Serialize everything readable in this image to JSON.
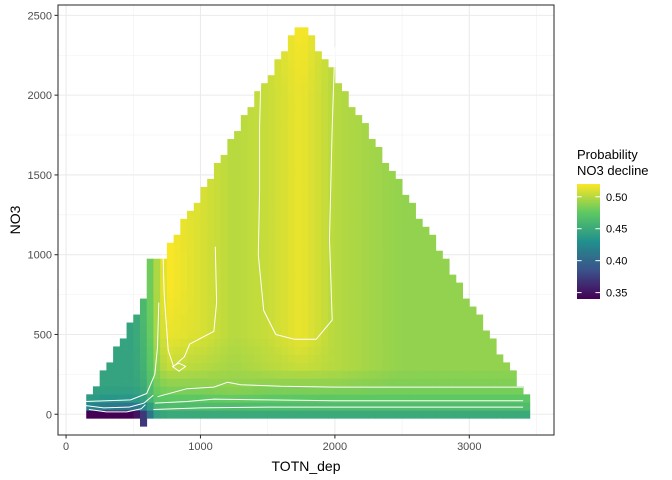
{
  "chart_data": {
    "type": "heatmap",
    "title": "",
    "xlabel": "TOTN_dep",
    "ylabel": "NO3",
    "xlim": [
      -60,
      3630
    ],
    "ylim": [
      -130,
      2565
    ],
    "x_ticks": [
      0,
      1000,
      2000,
      3000
    ],
    "y_ticks": [
      0,
      500,
      1000,
      1500,
      2000,
      2500
    ],
    "grid": true,
    "legend": {
      "position": "right",
      "title_lines": [
        "Probability",
        "NO3 decline"
      ],
      "ticks": [
        0.35,
        0.4,
        0.45,
        0.5
      ],
      "range": [
        0.34,
        0.52
      ],
      "colors": [
        "#440154",
        "#3b528b",
        "#21908d",
        "#5dc863",
        "#fde725"
      ]
    },
    "cell": {
      "dx": 50,
      "dy": 50
    },
    "domain_shape": {
      "x_min": 125,
      "x_max": 3450,
      "apex_x": 1750,
      "apex_y": 2475,
      "left_base_x": 110,
      "left_step_top_x": 625,
      "left_step_top_y": 800
    },
    "grid_values": {
      "x": [
        100,
        300,
        500,
        600,
        650,
        750,
        1000,
        1250,
        1500,
        1750,
        2000,
        2500,
        3000,
        3450
      ],
      "y": [
        0,
        25,
        75,
        125,
        200,
        300,
        500,
        800,
        1000,
        1500,
        2000,
        2500
      ],
      "z": [
        [
          0.34,
          0.34,
          0.34,
          0.38,
          0.44,
          0.45,
          0.45,
          0.45,
          0.45,
          0.45,
          0.45,
          0.45,
          0.45,
          0.45
        ],
        [
          0.41,
          0.4,
          0.39,
          0.41,
          0.45,
          0.46,
          0.46,
          0.46,
          0.46,
          0.46,
          0.46,
          0.46,
          0.46,
          0.46
        ],
        [
          0.44,
          0.43,
          0.43,
          0.44,
          0.465,
          0.47,
          0.47,
          0.47,
          0.47,
          0.47,
          0.47,
          0.47,
          0.47,
          0.47
        ],
        [
          0.445,
          0.44,
          0.44,
          0.45,
          0.475,
          0.48,
          0.48,
          0.485,
          0.48,
          0.48,
          0.48,
          0.48,
          0.48,
          0.48
        ],
        [
          0.445,
          0.445,
          0.445,
          0.455,
          0.48,
          0.49,
          0.49,
          0.49,
          0.49,
          0.49,
          0.49,
          0.485,
          0.485,
          0.485
        ],
        [
          0.445,
          0.445,
          0.445,
          0.46,
          0.485,
          0.505,
          0.5,
          0.495,
          0.5,
          0.505,
          0.5,
          0.49,
          0.49,
          0.49
        ],
        [
          0.445,
          0.445,
          0.445,
          0.465,
          0.49,
          0.515,
          0.51,
          0.5,
          0.505,
          0.515,
          0.5,
          0.49,
          0.49,
          0.49
        ],
        [
          0.445,
          0.445,
          0.445,
          0.47,
          0.49,
          0.52,
          0.51,
          0.5,
          0.505,
          0.515,
          0.5,
          0.49,
          0.49,
          0.49
        ],
        [
          0.445,
          0.445,
          0.445,
          0.47,
          0.49,
          0.52,
          0.51,
          0.5,
          0.505,
          0.515,
          0.5,
          0.49,
          0.49,
          0.49
        ],
        [
          0.445,
          0.445,
          0.445,
          0.47,
          0.49,
          0.515,
          0.51,
          0.5,
          0.505,
          0.515,
          0.5,
          0.49,
          0.49,
          0.49
        ],
        [
          0.445,
          0.445,
          0.445,
          0.47,
          0.49,
          0.51,
          0.505,
          0.5,
          0.505,
          0.515,
          0.5,
          0.49,
          0.49,
          0.49
        ],
        [
          0.445,
          0.445,
          0.445,
          0.47,
          0.49,
          0.51,
          0.505,
          0.5,
          0.505,
          0.52,
          0.5,
          0.49,
          0.49,
          0.49
        ]
      ]
    },
    "contours": [
      {
        "level": 0.35,
        "points": [
          [
            170,
            30
          ],
          [
            300,
            15
          ],
          [
            450,
            15
          ],
          [
            560,
            35
          ],
          [
            590,
            60
          ]
        ]
      },
      {
        "level": 0.4,
        "points": [
          [
            140,
            55
          ],
          [
            280,
            40
          ],
          [
            470,
            45
          ],
          [
            580,
            70
          ],
          [
            650,
            120
          ]
        ]
      },
      {
        "level": 0.44,
        "points": [
          [
            140,
            80
          ],
          [
            300,
            85
          ],
          [
            480,
            90
          ],
          [
            600,
            130
          ],
          [
            660,
            250
          ],
          [
            680,
            420
          ],
          [
            690,
            700
          ]
        ]
      },
      {
        "level": 0.46,
        "points": [
          [
            650,
            30
          ],
          [
            1000,
            40
          ],
          [
            1500,
            45
          ],
          [
            2000,
            45
          ],
          [
            3400,
            45
          ]
        ]
      },
      {
        "level": 0.47,
        "points": [
          [
            660,
            70
          ],
          [
            900,
            80
          ],
          [
            1100,
            95
          ],
          [
            1500,
            90
          ],
          [
            2000,
            85
          ],
          [
            3400,
            85
          ]
        ]
      },
      {
        "level": 0.48,
        "points": [
          [
            680,
            110
          ],
          [
            900,
            160
          ],
          [
            1100,
            170
          ],
          [
            1200,
            200
          ],
          [
            1300,
            185
          ],
          [
            1600,
            175
          ],
          [
            2000,
            170
          ],
          [
            3400,
            170
          ]
        ]
      },
      {
        "level": 0.5,
        "points": [
          [
            720,
            1050
          ],
          [
            730,
            750
          ],
          [
            760,
            400
          ],
          [
            800,
            300
          ],
          [
            880,
            360
          ],
          [
            920,
            440
          ],
          [
            1100,
            520
          ],
          [
            1120,
            700
          ],
          [
            1110,
            1050
          ]
        ]
      },
      {
        "level": 0.5,
        "points": [
          [
            790,
            300
          ],
          [
            840,
            270
          ],
          [
            890,
            300
          ],
          [
            840,
            320
          ],
          [
            790,
            300
          ]
        ]
      },
      {
        "level": 0.5,
        "points": [
          [
            1450,
            2150
          ],
          [
            1440,
            1800
          ],
          [
            1440,
            1400
          ],
          [
            1430,
            1000
          ],
          [
            1470,
            650
          ],
          [
            1560,
            500
          ],
          [
            1700,
            470
          ],
          [
            1860,
            470
          ],
          [
            1980,
            590
          ],
          [
            1960,
            1100
          ],
          [
            1980,
            1800
          ],
          [
            2000,
            2300
          ]
        ]
      }
    ]
  }
}
